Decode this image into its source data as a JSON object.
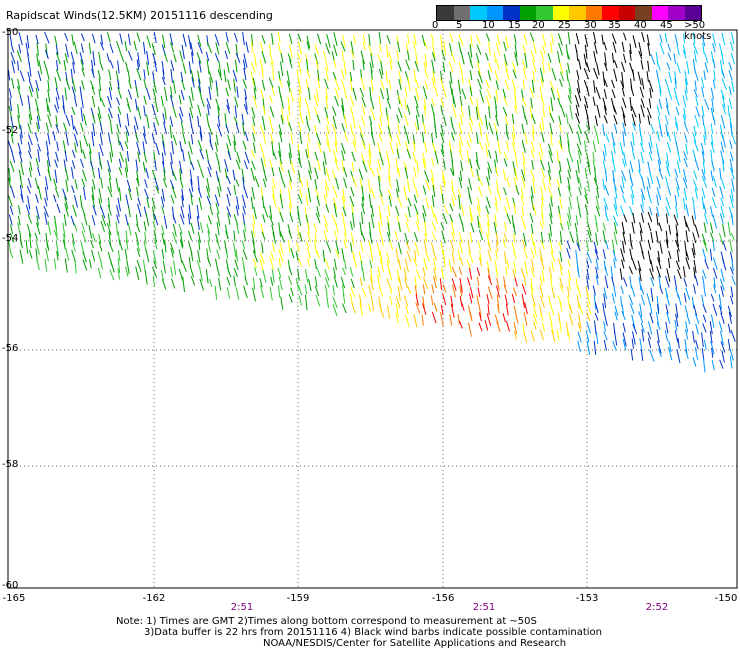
{
  "title": "Rapidscat Winds(12.5KM) 20151116 descending",
  "legend": {
    "colors": [
      "#3a3a3a",
      "#707070",
      "#00c8ff",
      "#0096ff",
      "#0032c8",
      "#00a000",
      "#32c832",
      "#ffff00",
      "#ffc800",
      "#ff7800",
      "#ff0000",
      "#c80000",
      "#784020",
      "#ff00ff",
      "#a000c8",
      "#5a0096"
    ],
    "labels": [
      "0",
      "5",
      "10",
      "15",
      "20",
      "25",
      "30",
      "35",
      "40",
      "45",
      ">50 knots"
    ]
  },
  "axes": {
    "lat_labels": [
      "-50",
      "-52",
      "-54",
      "-56",
      "-58",
      "-60"
    ],
    "lon_labels": [
      "-165",
      "-162",
      "-159",
      "-156",
      "-153",
      "-150"
    ]
  },
  "times": [
    "2:51",
    "2:51",
    "2:52"
  ],
  "notes": {
    "line1": "Note: 1) Times are GMT 2)Times along bottom correspond to measurement at ~50S",
    "line2": "3)Data buffer is 22 hrs from 20151116 4) Black wind barbs indicate possible contamination",
    "line3": "NOAA/NESDIS/Center for Satellite Applications and Research"
  }
}
